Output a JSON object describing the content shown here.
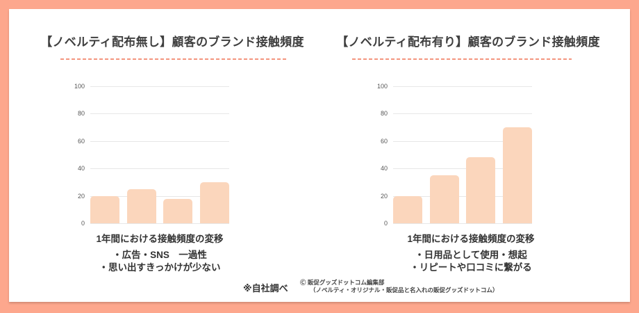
{
  "colors": {
    "frame": "#fda78d",
    "card_background": "#ffffff",
    "bar": "#fbd6bc",
    "dash_line": "#f3957e",
    "gridline": "#e7e7e7",
    "tick_text": "#565656",
    "title_text": "#3f3f3f",
    "body_text": "#333333"
  },
  "chart_data": [
    {
      "type": "bar",
      "title": "【ノベルティ配布無し】顧客のブランド接触頻度",
      "categories": [
        "",
        "",
        "",
        ""
      ],
      "values": [
        20,
        25,
        18,
        30
      ],
      "xlabel": "1年間における接触頻度の変移",
      "ylabel": "",
      "ylim": [
        0,
        100
      ],
      "yticks": [
        0,
        20,
        40,
        60,
        80,
        100
      ],
      "grid": true,
      "legend": false,
      "bar_color": "#fbd6bc",
      "annotations": [
        "・広告・SNS　一過性",
        "・思い出すきっかけが少ない"
      ]
    },
    {
      "type": "bar",
      "title": "【ノベルティ配布有り】顧客のブランド接触頻度",
      "categories": [
        "",
        "",
        "",
        ""
      ],
      "values": [
        20,
        35,
        48,
        70
      ],
      "xlabel": "1年間における接触頻度の変移",
      "ylabel": "",
      "ylim": [
        0,
        100
      ],
      "yticks": [
        0,
        20,
        40,
        60,
        80,
        100
      ],
      "grid": true,
      "legend": false,
      "bar_color": "#fbd6bc",
      "annotations": [
        "・日用品として使用・想起",
        "・リピートや口コミに繋がる"
      ]
    }
  ],
  "footer": {
    "source_note": "※自社調べ",
    "copyright": "Ⓒ 販促グッズドットコム編集部",
    "copyright_sub": "（ノベルティ・オリジナル・販促品と名入れの販促グッズドットコム）"
  }
}
